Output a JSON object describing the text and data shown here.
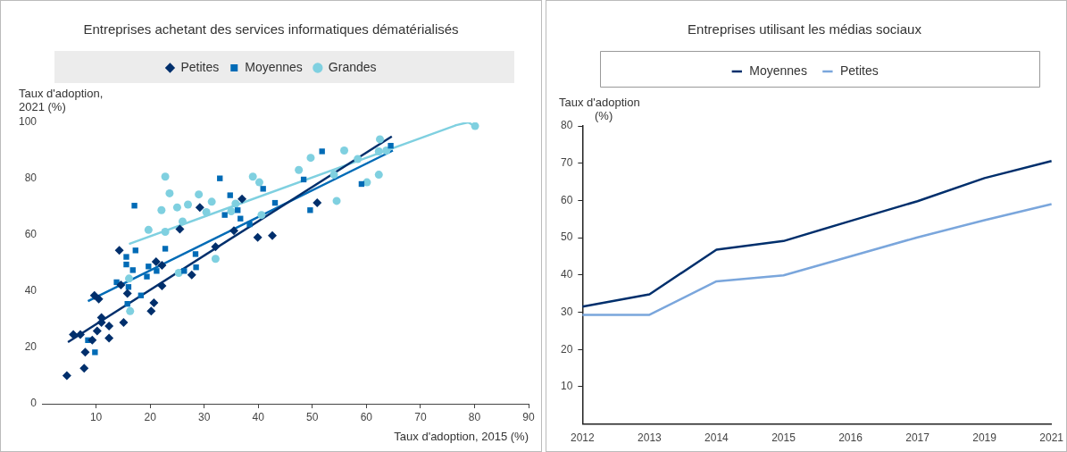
{
  "chart_data": [
    {
      "type": "scatter",
      "title": "Entreprises achetant des services informatiques dématérialisés",
      "xlabel": "Taux d'adoption, 2015 (%)",
      "ylabel": "Taux d'adoption, 2021 (%)",
      "xlim": [
        0,
        90
      ],
      "xticks": [
        10,
        20,
        30,
        40,
        50,
        60,
        70,
        80,
        90
      ],
      "ylim": [
        0,
        100
      ],
      "yticks": [
        0,
        20,
        40,
        60,
        80,
        100
      ],
      "grid": false,
      "legend": "top",
      "series": [
        {
          "name": "Petites",
          "type": "scatter",
          "marker": "diamond",
          "color": "#002f6c",
          "x": [
            4.6,
            7.8,
            5.8,
            7.1,
            8.0,
            9.3,
            10.2,
            11.0,
            11.0,
            12.4,
            12.4,
            9.7,
            10.5,
            15.1,
            14.3,
            14.6,
            15.8,
            20.2,
            20.7,
            21.1,
            22.2,
            22.2,
            25.5,
            27.7,
            29.2,
            32.1,
            35.5,
            37.0,
            39.9,
            42.6,
            50.9
          ],
          "values": [
            10.0,
            12.6,
            24.6,
            24.6,
            18.3,
            22.6,
            25.9,
            30.6,
            28.9,
            27.6,
            23.3,
            38.5,
            37.2,
            28.9,
            54.5,
            42.2,
            39.2,
            32.9,
            35.9,
            50.5,
            49.2,
            41.9,
            62.1,
            45.8,
            69.8,
            55.8,
            61.5,
            72.8,
            59.1,
            59.8,
            71.4
          ]
        },
        {
          "name": "Moyennes",
          "type": "scatter",
          "marker": "square",
          "color": "#006bb6",
          "x": [
            8.5,
            9.8,
            17.1,
            17.3,
            15.6,
            15.6,
            16.8,
            13.8,
            16.0,
            15.8,
            18.3,
            19.4,
            19.7,
            21.2,
            22.8,
            26.3,
            28.4,
            28.5,
            32.9,
            34.8,
            33.8,
            36.2,
            36.7,
            38.4,
            40.9,
            43.1,
            48.4,
            49.6,
            51.8,
            59.1,
            64.5
          ],
          "values": [
            22.6,
            18.3,
            70.4,
            54.5,
            52.2,
            49.5,
            47.5,
            43.2,
            41.5,
            35.5,
            38.5,
            45.2,
            48.8,
            47.2,
            55.1,
            47.2,
            53.2,
            48.5,
            80.1,
            74.1,
            67.1,
            68.8,
            65.8,
            63.8,
            76.4,
            71.4,
            79.7,
            68.8,
            89.7,
            78.1,
            91.7
          ]
        },
        {
          "name": "Grandes",
          "type": "scatter",
          "marker": "circle",
          "color": "#7fd0e0",
          "x": [
            22.8,
            23.6,
            22.1,
            25.0,
            27.0,
            29.0,
            31.4,
            30.4,
            26.0,
            22.8,
            19.7,
            32.1,
            25.3,
            16.1,
            16.3,
            35.0,
            35.8,
            39.0,
            40.2,
            40.6,
            47.5,
            49.7,
            55.9,
            54.0,
            54.5,
            58.4,
            62.5,
            62.3,
            63.7,
            62.3,
            60.1,
            80.1
          ],
          "values": [
            80.7,
            74.8,
            68.8,
            69.8,
            70.8,
            74.4,
            71.8,
            68.1,
            64.8,
            61.1,
            61.8,
            51.5,
            46.5,
            44.5,
            32.9,
            68.4,
            71.1,
            80.7,
            78.7,
            67.1,
            83.1,
            87.4,
            90.0,
            81.4,
            72.1,
            87.0,
            94.0,
            89.7,
            90.0,
            81.4,
            78.7,
            98.7
          ]
        },
        {
          "type": "line",
          "marker": "none",
          "color": "#002f6c",
          "x": [
            4.8,
            64.7
          ],
          "values": [
            21.9,
            95.0
          ]
        },
        {
          "type": "line",
          "marker": "none",
          "color": "#006bb6",
          "x": [
            8.5,
            64.9
          ],
          "values": [
            36.5,
            90.0
          ]
        },
        {
          "type": "line",
          "marker": "none",
          "color": "#7fd0e0",
          "x": [
            16.1,
            76.6,
            78.8,
            80.1
          ],
          "values": [
            56.8,
            99.0,
            100,
            98.7
          ]
        }
      ]
    },
    {
      "type": "line",
      "title": "Entreprises utilisant les médias sociaux",
      "ylabel": "Taux d'adoption (%)",
      "categories": [
        "2012",
        "2013",
        "2014",
        "2015",
        "2016",
        "2017",
        "2019",
        "2021"
      ],
      "ylim": [
        0,
        80
      ],
      "yticks": [
        10,
        20,
        30,
        40,
        50,
        60,
        70,
        80
      ],
      "grid": false,
      "legend": "top",
      "marker": "none",
      "series": [
        {
          "name": "Moyennes",
          "color": "#002f6c",
          "values": [
            31.5,
            34.8,
            46.8,
            49.1,
            54.5,
            59.8,
            66.0,
            70.6
          ]
        },
        {
          "name": "Petites",
          "color": "#7aa6dc",
          "values": [
            29.3,
            29.3,
            38.3,
            39.9,
            45.0,
            50.1,
            54.7,
            59.0
          ]
        }
      ]
    }
  ]
}
